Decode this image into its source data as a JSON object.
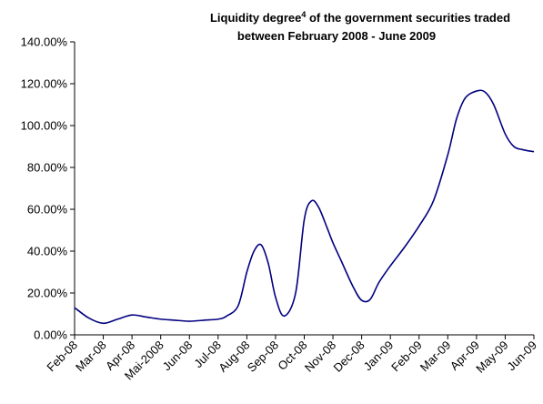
{
  "chart_data": {
    "type": "line",
    "title": {
      "line1_prefix": "Liquidity degree",
      "line1_sup": "4",
      "line1_suffix": " of the government securities traded",
      "line2": "between February 2008 - June  2009"
    },
    "xlabel": "",
    "ylabel": "",
    "ylim": [
      0,
      140
    ],
    "y_ticks": [
      "0.00%",
      "20.00%",
      "40.00%",
      "60.00%",
      "80.00%",
      "100.00%",
      "120.00%",
      "140.00%"
    ],
    "categories": [
      "Feb-08",
      "Mar-08",
      "Apr-08",
      "Mai-2008",
      "Jun-08",
      "Jul-08",
      "Aug-08",
      "Sep-08",
      "Oct-08",
      "Nov-08",
      "Dec-08",
      "Jan-09",
      "Feb-09",
      "Mar-09",
      "Apr-09",
      "May-09",
      "Jun-09"
    ],
    "series": [
      {
        "color": "#000080",
        "x": [
          0,
          0.5,
          1,
          1.5,
          2,
          2.5,
          3,
          3.5,
          4,
          4.5,
          5,
          5.3,
          5.7,
          6,
          6.25,
          6.5,
          6.75,
          7,
          7.3,
          7.7,
          8,
          8.25,
          8.5,
          8.8,
          9,
          9.3,
          9.7,
          10,
          10.3,
          10.6,
          11,
          11.5,
          12,
          12.5,
          13,
          13.3,
          13.6,
          14,
          14.3,
          14.6,
          15,
          15.3,
          15.6,
          16
        ],
        "values": [
          13,
          8,
          5.5,
          7.5,
          9.5,
          8.5,
          7.5,
          7,
          6.5,
          7,
          7.5,
          9,
          14,
          30,
          40,
          43,
          34,
          18,
          9,
          20,
          55,
          64,
          61,
          51,
          44,
          35,
          23,
          16.5,
          17,
          25,
          33,
          42,
          52,
          64,
          86,
          103,
          113,
          116.5,
          116,
          110,
          96,
          90,
          88.5,
          87.5
        ]
      }
    ],
    "grid": false,
    "legend": "none"
  }
}
